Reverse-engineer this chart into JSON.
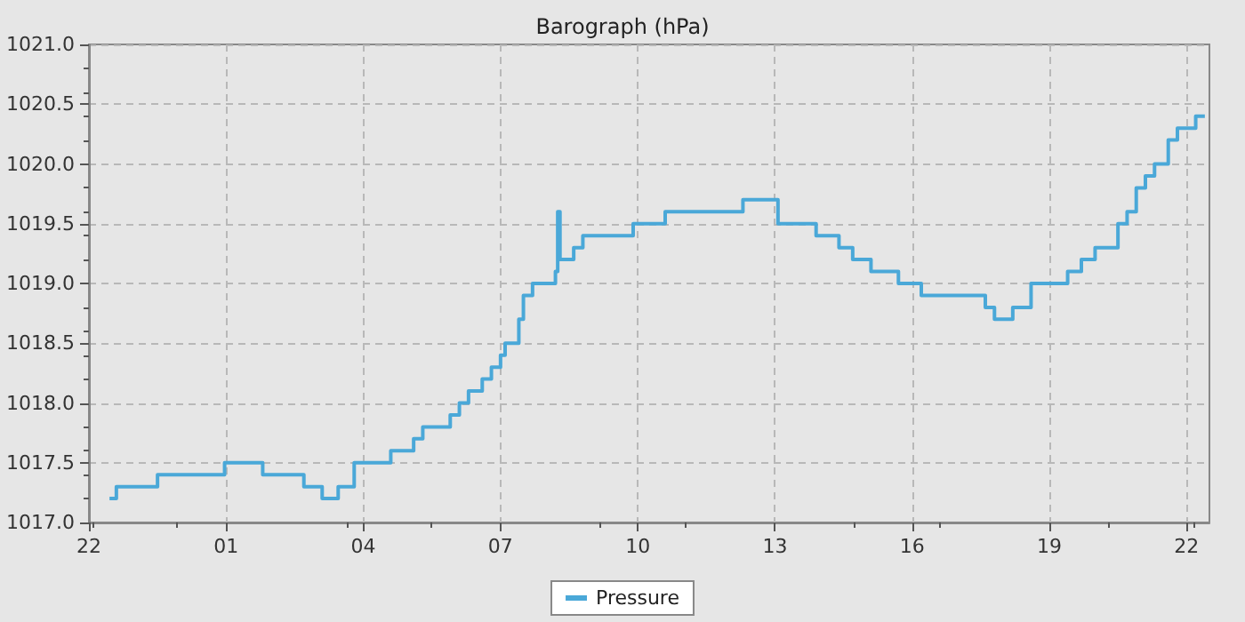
{
  "chart_data": {
    "type": "step",
    "title": "Barograph (hPa)",
    "x": [
      "--01-01T22:27",
      "--01-01T22:36",
      "--01-01T23:21",
      "--01-01T23:30",
      "--01-02T00:39",
      "--01-02T00:58",
      "--01-02T01:18",
      "--01-02T01:48",
      "--01-02T02:42",
      "--01-02T03:06",
      "--01-02T03:27",
      "--01-02T03:48",
      "--01-02T04:30",
      "--01-02T04:36",
      "--01-02T05:06",
      "--01-02T05:18",
      "--01-02T05:54",
      "--01-02T06:06",
      "--01-02T06:18",
      "--01-02T06:36",
      "--01-02T06:48",
      "--01-02T07:00",
      "--01-02T07:06",
      "--01-02T07:24",
      "--01-02T07:30",
      "--01-02T07:42",
      "--01-02T08:12",
      "--01-02T08:15",
      "--01-02T08:18",
      "--01-02T08:36",
      "--01-02T08:48",
      "--01-02T09:30",
      "--01-02T09:54",
      "--01-02T10:06",
      "--01-02T10:36",
      "--01-02T12:18",
      "--01-02T13:04",
      "--01-02T13:30",
      "--01-02T13:54",
      "--01-02T14:24",
      "--01-02T14:42",
      "--01-02T15:06",
      "--01-02T15:42",
      "--01-02T16:12",
      "--01-02T17:30",
      "--01-02T17:36",
      "--01-02T17:48",
      "--01-02T18:12",
      "--01-02T18:36",
      "--01-02T19:18",
      "--01-02T19:24",
      "--01-02T19:42",
      "--01-02T20:00",
      "--01-02T20:30",
      "--01-02T20:42",
      "--01-02T20:54",
      "--01-02T21:06",
      "--01-02T21:18",
      "--01-02T21:36",
      "--01-02T21:48",
      "--01-02T22:06",
      "--01-02T22:12",
      "--01-02T22:24"
    ],
    "series": [
      {
        "name": "Pressure",
        "color": "#4aa8d8",
        "values": [
          1017.2,
          1017.3,
          1017.3,
          1017.4,
          1017.4,
          1017.5,
          1017.5,
          1017.4,
          1017.3,
          1017.2,
          1017.3,
          1017.5,
          1017.5,
          1017.6,
          1017.7,
          1017.8,
          1017.9,
          1018.0,
          1018.1,
          1018.2,
          1018.3,
          1018.4,
          1018.5,
          1018.7,
          1018.9,
          1019.0,
          1019.1,
          1019.6,
          1019.2,
          1019.3,
          1019.4,
          1019.4,
          1019.5,
          1019.5,
          1019.6,
          1019.7,
          1019.5,
          1019.5,
          1019.4,
          1019.3,
          1019.2,
          1019.1,
          1019.0,
          1018.9,
          1018.9,
          1018.8,
          1018.7,
          1018.8,
          1019.0,
          1019.0,
          1019.1,
          1019.2,
          1019.3,
          1019.5,
          1019.6,
          1019.8,
          1019.9,
          1020.0,
          1020.2,
          1020.3,
          1020.3,
          1020.4,
          1020.4
        ]
      }
    ],
    "xlim": [
      "--01-01T22:00",
      "--01-02T22:30"
    ],
    "xticks": [
      {
        "value": "--01-01T22:00",
        "label": "22"
      },
      {
        "value": "--01-02T01:00",
        "label": "01"
      },
      {
        "value": "--01-02T04:00",
        "label": "04"
      },
      {
        "value": "--01-02T07:00",
        "label": "07"
      },
      {
        "value": "--01-02T10:00",
        "label": "10"
      },
      {
        "value": "--01-02T13:00",
        "label": "13"
      },
      {
        "value": "--01-02T16:00",
        "label": "16"
      },
      {
        "value": "--01-02T19:00",
        "label": "19"
      },
      {
        "value": "--01-02T22:00",
        "label": "22"
      }
    ],
    "ylim": [
      1017,
      1021
    ],
    "yticks": [
      {
        "value": 1017,
        "label": "1017.0"
      },
      {
        "value": 1017.5,
        "label": "1017.5"
      },
      {
        "value": 1018,
        "label": "1018.0"
      },
      {
        "value": 1018.5,
        "label": "1018.5"
      },
      {
        "value": 1019,
        "label": "1019.0"
      },
      {
        "value": 1019.5,
        "label": "1019.5"
      },
      {
        "value": 1020,
        "label": "1020.0"
      },
      {
        "value": 1020.5,
        "label": "1020.5"
      },
      {
        "value": 1021,
        "label": "1021.0"
      }
    ],
    "grid": true,
    "legend": "bottom",
    "marker": "none",
    "line_style": "solid"
  }
}
